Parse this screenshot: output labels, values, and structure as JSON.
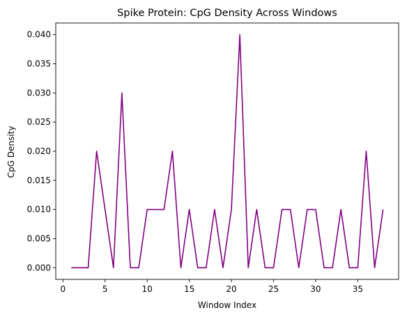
{
  "chart_data": {
    "type": "line",
    "title": "Spike Protein: CpG Density Across Windows",
    "xlabel": "Window Index",
    "ylabel": "CpG Density",
    "xlim": [
      -0.85,
      39.85
    ],
    "ylim": [
      -0.002,
      0.042
    ],
    "xticks": [
      0,
      5,
      10,
      15,
      20,
      25,
      30,
      35
    ],
    "xtick_labels": [
      "0",
      "5",
      "10",
      "15",
      "20",
      "25",
      "30",
      "35"
    ],
    "yticks": [
      0.0,
      0.005,
      0.01,
      0.015,
      0.02,
      0.025,
      0.03,
      0.035,
      0.04
    ],
    "ytick_labels": [
      "0.000",
      "0.005",
      "0.010",
      "0.015",
      "0.020",
      "0.025",
      "0.030",
      "0.035",
      "0.040"
    ],
    "grid": false,
    "series": [
      {
        "color": "#800080",
        "x": [
          1,
          2,
          3,
          4,
          5,
          6,
          7,
          8,
          9,
          10,
          11,
          12,
          13,
          14,
          15,
          16,
          17,
          18,
          19,
          20,
          21,
          22,
          23,
          24,
          25,
          26,
          27,
          28,
          29,
          30,
          31,
          32,
          33,
          34,
          35,
          36,
          37,
          38
        ],
        "y": [
          0,
          0,
          0,
          0.02,
          0.01,
          0,
          0.03,
          0,
          0,
          0.01,
          0.01,
          0.01,
          0.02,
          0,
          0.01,
          0,
          0,
          0.01,
          0,
          0.01,
          0.04,
          0,
          0.01,
          0,
          0,
          0.01,
          0.01,
          0,
          0.01,
          0.01,
          0,
          0,
          0.01,
          0,
          0,
          0.02,
          0,
          0.01
        ]
      }
    ]
  }
}
